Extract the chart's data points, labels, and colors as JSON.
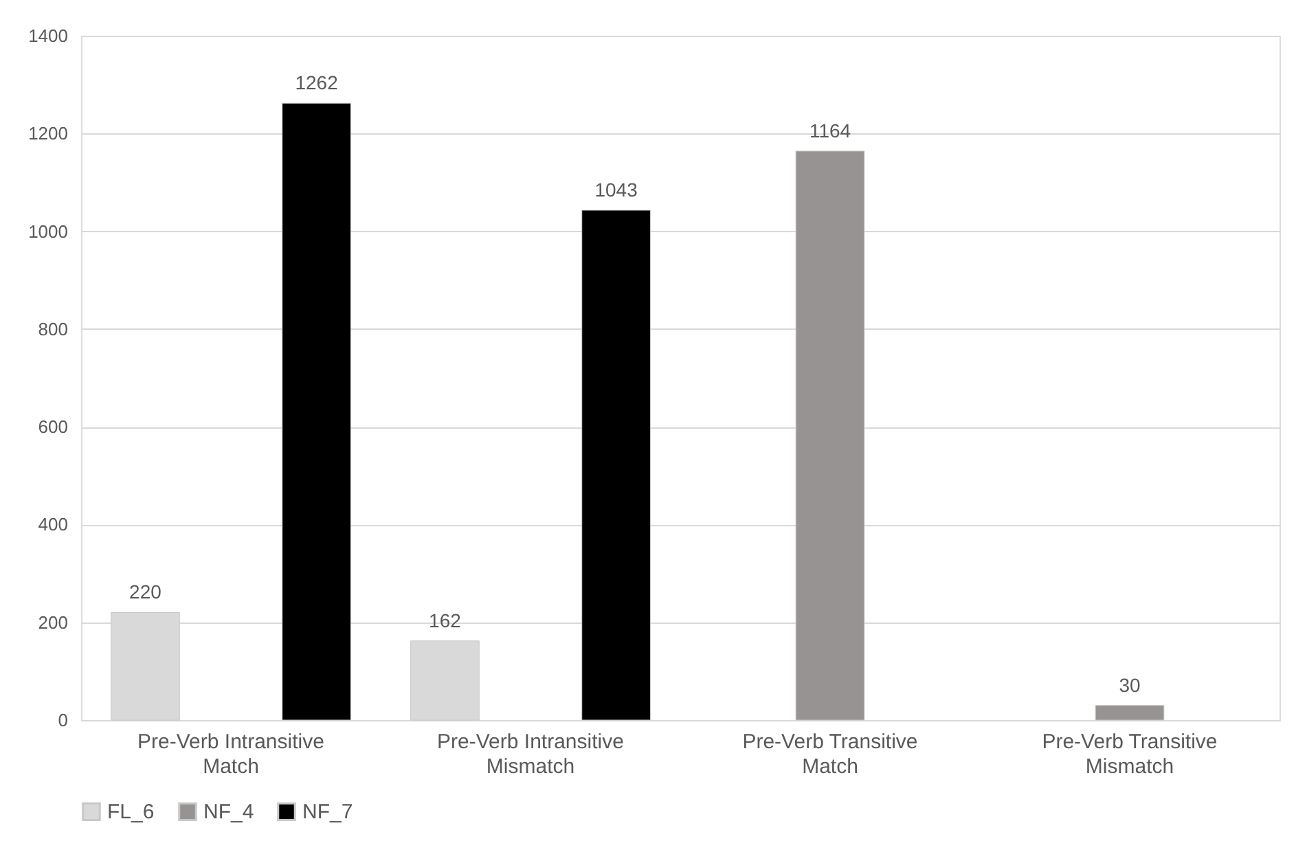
{
  "chart_data": {
    "type": "bar",
    "categories": [
      "Pre-Verb Intransitive Match",
      "Pre-Verb Intransitive Mismatch",
      "Pre-Verb Transitive Match",
      "Pre-Verb Transitive Mismatch"
    ],
    "series": [
      {
        "name": "FL_6",
        "color": "#d9d9d9",
        "values": [
          220,
          162,
          null,
          null
        ]
      },
      {
        "name": "NF_4",
        "color": "#989393",
        "values": [
          null,
          null,
          1164,
          30
        ]
      },
      {
        "name": "NF_7",
        "color": "#000000",
        "values": [
          1262,
          1043,
          null,
          null
        ]
      }
    ],
    "ylim": [
      0,
      1400
    ],
    "yticks": [
      0,
      200,
      400,
      600,
      800,
      1000,
      1200,
      1400
    ],
    "grid": "y",
    "legend": "bottom",
    "data_labels": true
  }
}
